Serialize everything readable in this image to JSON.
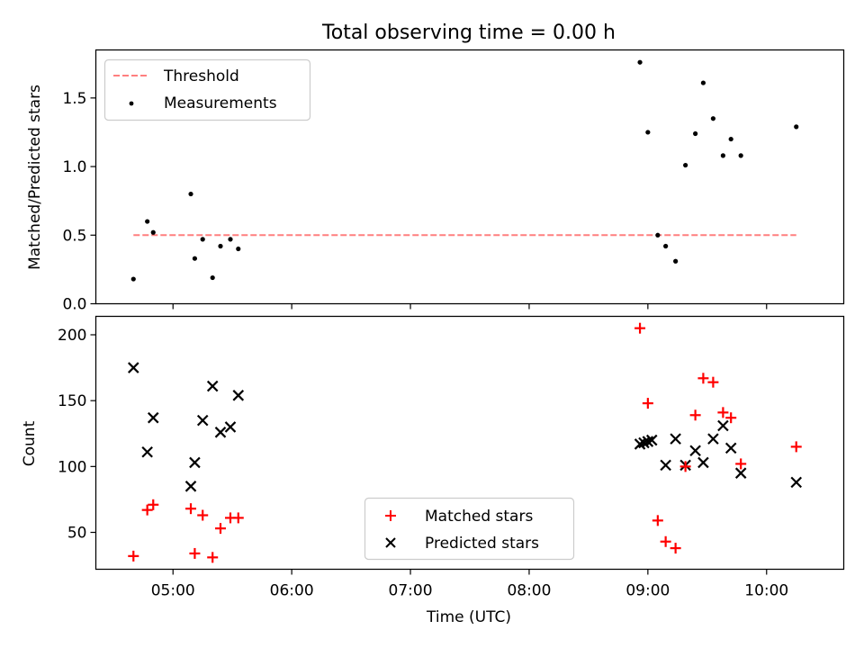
{
  "figure": {
    "title": "Total observing time = 0.00 h",
    "xlabel": "Time (UTC)"
  },
  "colors": {
    "threshold": "#ff7f7f",
    "measurements": "#000000",
    "matched": "#ff0000",
    "predicted": "#000000"
  },
  "chart_data": [
    {
      "type": "scatter",
      "panel": "top",
      "ylabel": "Matched/Predicted stars",
      "ylim": [
        0.0,
        1.85
      ],
      "yticks": [
        0.0,
        0.5,
        1.0,
        1.5
      ],
      "ytick_labels": [
        "0.0",
        "0.5",
        "1.0",
        "1.5"
      ],
      "xlim": [
        "04:21",
        "10:39"
      ],
      "xticks": [
        "05:00",
        "06:00",
        "07:00",
        "08:00",
        "09:00",
        "10:00"
      ],
      "legend": {
        "placement": "top-left",
        "entries": [
          "Threshold",
          "Measurements"
        ]
      },
      "threshold": {
        "name": "Threshold",
        "y": 0.5,
        "x_range": [
          "04:40",
          "10:15"
        ],
        "style": "dashed"
      },
      "series": [
        {
          "name": "Measurements",
          "marker": "dot",
          "x": [
            "04:40",
            "04:47",
            "04:50",
            "05:09",
            "05:11",
            "05:15",
            "05:20",
            "05:24",
            "05:29",
            "05:33",
            "08:56",
            "09:00",
            "09:05",
            "09:09",
            "09:14",
            "09:19",
            "09:24",
            "09:28",
            "09:33",
            "09:38",
            "09:42",
            "09:47",
            "10:15"
          ],
          "y": [
            0.18,
            0.6,
            0.52,
            0.8,
            0.33,
            0.47,
            0.19,
            0.42,
            0.47,
            0.4,
            1.76,
            1.25,
            0.5,
            0.42,
            0.31,
            1.01,
            1.24,
            1.61,
            1.35,
            1.08,
            1.2,
            1.08,
            1.29
          ]
        }
      ]
    },
    {
      "type": "scatter",
      "panel": "bottom",
      "ylabel": "Count",
      "ylim": [
        22,
        214
      ],
      "yticks": [
        50,
        100,
        150,
        200
      ],
      "ytick_labels": [
        "50",
        "100",
        "150",
        "200"
      ],
      "xlim": [
        "04:21",
        "10:39"
      ],
      "xticks": [
        "05:00",
        "06:00",
        "07:00",
        "08:00",
        "09:00",
        "10:00"
      ],
      "xtick_labels": [
        "05:00",
        "06:00",
        "07:00",
        "08:00",
        "09:00",
        "10:00"
      ],
      "legend": {
        "placement": "lower-center",
        "entries": [
          "Matched stars",
          "Predicted stars"
        ]
      },
      "series": [
        {
          "name": "Matched stars",
          "marker": "plus",
          "x": [
            "04:40",
            "04:47",
            "04:50",
            "05:09",
            "05:11",
            "05:15",
            "05:20",
            "05:24",
            "05:29",
            "05:33",
            "08:56",
            "09:00",
            "09:05",
            "09:09",
            "09:14",
            "09:19",
            "09:24",
            "09:28",
            "09:33",
            "09:38",
            "09:42",
            "09:47",
            "10:15"
          ],
          "y": [
            32,
            67,
            71,
            68,
            34,
            63,
            31,
            53,
            61,
            61,
            205,
            148,
            59,
            43,
            38,
            100,
            139,
            167,
            164,
            141,
            137,
            102,
            115
          ]
        },
        {
          "name": "Predicted stars",
          "marker": "x",
          "x": [
            "04:40",
            "04:47",
            "04:50",
            "05:09",
            "05:11",
            "05:15",
            "05:20",
            "05:24",
            "05:29",
            "05:33",
            "08:56",
            "08:58",
            "09:02",
            "09:00",
            "09:09",
            "09:14",
            "09:19",
            "09:24",
            "09:28",
            "09:33",
            "09:38",
            "09:42",
            "09:47",
            "10:15"
          ],
          "y": [
            175,
            111,
            137,
            85,
            103,
            135,
            161,
            126,
            130,
            154,
            117,
            118,
            120,
            119,
            101,
            121,
            101,
            112,
            103,
            121,
            131,
            114,
            95,
            88
          ]
        }
      ]
    }
  ]
}
